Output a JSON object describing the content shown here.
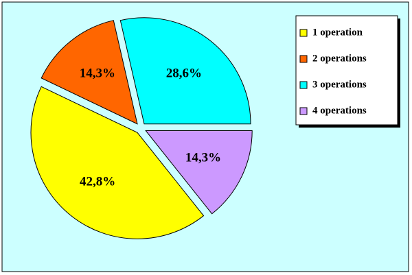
{
  "chart_data": {
    "type": "pie",
    "categories": [
      "1 operation",
      "2 operations",
      "3 operations",
      "4 operations"
    ],
    "values": [
      42.8,
      14.3,
      28.6,
      14.3
    ],
    "value_labels": [
      "42,8%",
      "14,3%",
      "28,6%",
      "14,3%"
    ],
    "colors": [
      "#FFFF00",
      "#FF6600",
      "#00FFFF",
      "#CC99FF"
    ],
    "legend": "right"
  }
}
